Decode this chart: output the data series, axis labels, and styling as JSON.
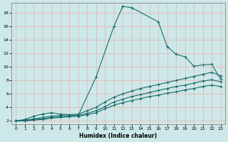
{
  "xlabel": "Humidex (Indice chaleur)",
  "xlim": [
    -0.5,
    23.5
  ],
  "ylim": [
    1.5,
    19.5
  ],
  "yticks": [
    2,
    4,
    6,
    8,
    10,
    12,
    14,
    16,
    18
  ],
  "xticks": [
    0,
    1,
    2,
    3,
    4,
    5,
    6,
    7,
    8,
    9,
    10,
    11,
    12,
    13,
    14,
    15,
    16,
    17,
    18,
    19,
    20,
    21,
    22,
    23
  ],
  "bg_color": "#cde8e8",
  "grid_color": "#b8d8d8",
  "line_color": "#1a6b6b",
  "lines": [
    {
      "x": [
        0,
        1,
        2,
        3,
        4,
        5,
        6,
        7,
        9,
        11,
        12,
        13,
        16,
        17,
        18,
        19,
        20,
        21,
        22,
        23
      ],
      "y": [
        2,
        2.2,
        2.7,
        3.0,
        3.2,
        3.0,
        2.9,
        2.8,
        8.5,
        16.0,
        19.0,
        18.8,
        16.7,
        13.0,
        11.9,
        11.5,
        10.1,
        10.3,
        10.4,
        8.2
      ],
      "marker": "+"
    },
    {
      "x": [
        0,
        1,
        2,
        3,
        4,
        5,
        6,
        7,
        8,
        9,
        10,
        11,
        12,
        13,
        14,
        15,
        16,
        17,
        18,
        19,
        20,
        21,
        22,
        23
      ],
      "y": [
        2,
        2.1,
        2.3,
        2.5,
        2.7,
        2.8,
        2.9,
        3.0,
        3.5,
        4.0,
        4.8,
        5.5,
        6.0,
        6.4,
        6.8,
        7.1,
        7.4,
        7.7,
        8.0,
        8.3,
        8.6,
        8.9,
        9.2,
        8.7
      ],
      "marker": "+"
    },
    {
      "x": [
        0,
        1,
        2,
        3,
        4,
        5,
        6,
        7,
        8,
        9,
        10,
        11,
        12,
        13,
        14,
        15,
        16,
        17,
        18,
        19,
        20,
        21,
        22,
        23
      ],
      "y": [
        2,
        2.0,
        2.2,
        2.3,
        2.5,
        2.6,
        2.7,
        2.8,
        3.1,
        3.5,
        4.1,
        4.8,
        5.2,
        5.6,
        5.9,
        6.2,
        6.5,
        6.8,
        7.1,
        7.3,
        7.6,
        7.9,
        8.1,
        7.8
      ],
      "marker": "+"
    },
    {
      "x": [
        0,
        1,
        2,
        3,
        4,
        5,
        6,
        7,
        8,
        9,
        10,
        11,
        12,
        13,
        14,
        15,
        16,
        17,
        18,
        19,
        20,
        21,
        22,
        23
      ],
      "y": [
        2,
        2.0,
        2.1,
        2.2,
        2.4,
        2.5,
        2.6,
        2.7,
        2.9,
        3.2,
        3.8,
        4.3,
        4.7,
        5.0,
        5.3,
        5.6,
        5.8,
        6.1,
        6.3,
        6.6,
        6.8,
        7.1,
        7.3,
        7.1
      ],
      "marker": "+"
    }
  ]
}
